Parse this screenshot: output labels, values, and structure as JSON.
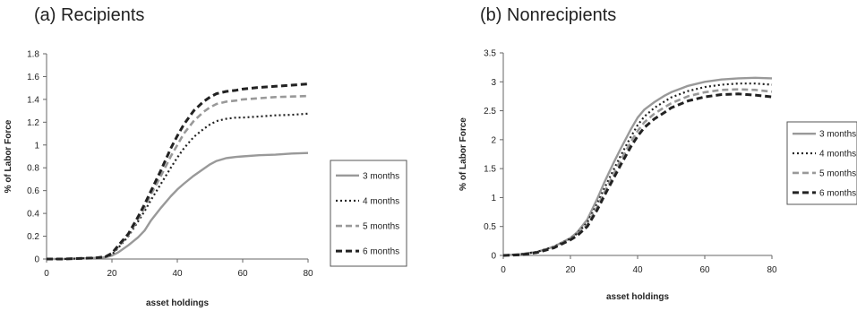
{
  "chart_data": [
    {
      "type": "line",
      "title": "(a)  Recipients",
      "xlabel": "asset holdings",
      "ylabel": "% of Labor Force",
      "xlim": [
        0,
        80
      ],
      "ylim": [
        0,
        1.8
      ],
      "xticks": [
        "0",
        "20",
        "40",
        "60",
        "80"
      ],
      "yticks": [
        "0",
        "0.2",
        "0.4",
        "0.6",
        "0.8",
        "1",
        "1.2",
        "1.4",
        "1.6",
        "1.8"
      ],
      "legend_position": "right",
      "x": [
        0,
        5,
        10,
        15,
        18,
        20,
        22,
        25,
        28,
        30,
        32,
        35,
        38,
        40,
        42,
        45,
        48,
        50,
        52,
        55,
        58,
        60,
        65,
        70,
        75,
        80
      ],
      "series": [
        {
          "name": "3 months",
          "color": "#999999",
          "style": "solid",
          "values": [
            0.0,
            0.0,
            0.005,
            0.01,
            0.015,
            0.03,
            0.06,
            0.12,
            0.19,
            0.25,
            0.34,
            0.45,
            0.55,
            0.61,
            0.66,
            0.73,
            0.79,
            0.83,
            0.86,
            0.885,
            0.895,
            0.9,
            0.91,
            0.915,
            0.925,
            0.93
          ]
        },
        {
          "name": "4 months",
          "color": "#222222",
          "style": "dotted",
          "values": [
            0.0,
            0.0,
            0.005,
            0.01,
            0.02,
            0.04,
            0.1,
            0.2,
            0.33,
            0.42,
            0.52,
            0.66,
            0.8,
            0.89,
            0.97,
            1.07,
            1.14,
            1.18,
            1.21,
            1.23,
            1.24,
            1.24,
            1.25,
            1.26,
            1.265,
            1.275
          ]
        },
        {
          "name": "5 months",
          "color": "#999999",
          "style": "dashed",
          "values": [
            0.0,
            0.0,
            0.005,
            0.01,
            0.02,
            0.05,
            0.11,
            0.21,
            0.35,
            0.45,
            0.57,
            0.73,
            0.9,
            1.0,
            1.1,
            1.21,
            1.29,
            1.33,
            1.36,
            1.38,
            1.39,
            1.4,
            1.41,
            1.42,
            1.425,
            1.43
          ]
        },
        {
          "name": "6 months",
          "color": "#222222",
          "style": "dashed-bold",
          "values": [
            0.0,
            0.0,
            0.005,
            0.01,
            0.02,
            0.05,
            0.12,
            0.22,
            0.37,
            0.48,
            0.6,
            0.78,
            0.97,
            1.08,
            1.18,
            1.3,
            1.38,
            1.42,
            1.45,
            1.47,
            1.48,
            1.49,
            1.505,
            1.515,
            1.525,
            1.535
          ]
        }
      ]
    },
    {
      "type": "line",
      "title": "(b)  Nonrecipients",
      "xlabel": "asset holdings",
      "ylabel": "% of Labor Force",
      "xlim": [
        0,
        80
      ],
      "ylim": [
        0,
        3.5
      ],
      "xticks": [
        "0",
        "20",
        "40",
        "60",
        "80"
      ],
      "yticks": [
        "0",
        "0.5",
        "1",
        "1.5",
        "2",
        "2.5",
        "3",
        "3.5"
      ],
      "legend_position": "right",
      "x": [
        0,
        5,
        10,
        15,
        20,
        22,
        25,
        28,
        30,
        33,
        35,
        38,
        40,
        42,
        45,
        48,
        50,
        55,
        60,
        65,
        70,
        75,
        80
      ],
      "series": [
        {
          "name": "3 months",
          "color": "#999999",
          "style": "solid",
          "values": [
            0.0,
            0.02,
            0.06,
            0.15,
            0.3,
            0.4,
            0.62,
            0.98,
            1.25,
            1.62,
            1.85,
            2.18,
            2.38,
            2.52,
            2.65,
            2.76,
            2.82,
            2.93,
            3.0,
            3.04,
            3.06,
            3.07,
            3.06
          ]
        },
        {
          "name": "4 months",
          "color": "#222222",
          "style": "dotted",
          "values": [
            0.0,
            0.02,
            0.06,
            0.15,
            0.29,
            0.38,
            0.57,
            0.9,
            1.15,
            1.5,
            1.73,
            2.05,
            2.25,
            2.4,
            2.55,
            2.66,
            2.73,
            2.84,
            2.91,
            2.95,
            2.97,
            2.97,
            2.95
          ]
        },
        {
          "name": "5 months",
          "color": "#999999",
          "style": "dashed",
          "values": [
            0.0,
            0.02,
            0.05,
            0.14,
            0.28,
            0.36,
            0.53,
            0.84,
            1.08,
            1.42,
            1.65,
            1.96,
            2.15,
            2.3,
            2.45,
            2.56,
            2.63,
            2.75,
            2.82,
            2.86,
            2.87,
            2.86,
            2.83
          ]
        },
        {
          "name": "6 months",
          "color": "#222222",
          "style": "dashed-bold",
          "values": [
            0.0,
            0.01,
            0.05,
            0.13,
            0.27,
            0.34,
            0.5,
            0.79,
            1.02,
            1.35,
            1.57,
            1.88,
            2.06,
            2.21,
            2.36,
            2.47,
            2.55,
            2.67,
            2.74,
            2.78,
            2.79,
            2.77,
            2.74
          ]
        }
      ]
    }
  ]
}
